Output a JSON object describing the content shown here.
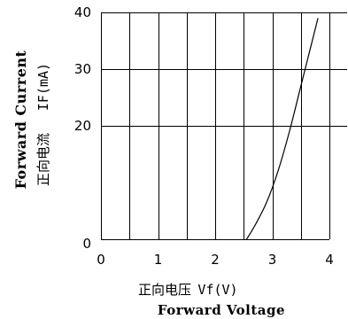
{
  "chart_data": {
    "type": "line",
    "x_label_cn": "正向电压",
    "x_label_unit": "Vf(V)",
    "x_label_en": "Forward Voltage",
    "y_label_en": "Forward Current",
    "y_label_cn": "正向电流",
    "y_label_unit": "IF(mA)",
    "xlim": [
      0,
      4
    ],
    "ylim": [
      0,
      40
    ],
    "x_ticks": [
      "0",
      "1",
      "2",
      "3",
      "4"
    ],
    "x_tick_values": [
      0,
      1,
      2,
      3,
      4
    ],
    "y_ticks": [
      "0",
      "20",
      "30",
      "40"
    ],
    "y_tick_values": [
      0,
      20,
      30,
      40
    ],
    "v_grid_values": [
      0,
      0.5,
      1,
      1.5,
      2,
      2.5,
      3,
      3.5,
      4
    ],
    "h_grid_values": [
      20,
      30,
      40
    ],
    "grid": true,
    "series": [
      {
        "x": [
          2.55,
          2.7,
          2.9,
          3.1,
          3.3,
          3.5,
          3.65,
          3.8
        ],
        "y": [
          0,
          2.5,
          6.5,
          12,
          19,
          27,
          33,
          39
        ],
        "color": "#000000"
      }
    ]
  }
}
